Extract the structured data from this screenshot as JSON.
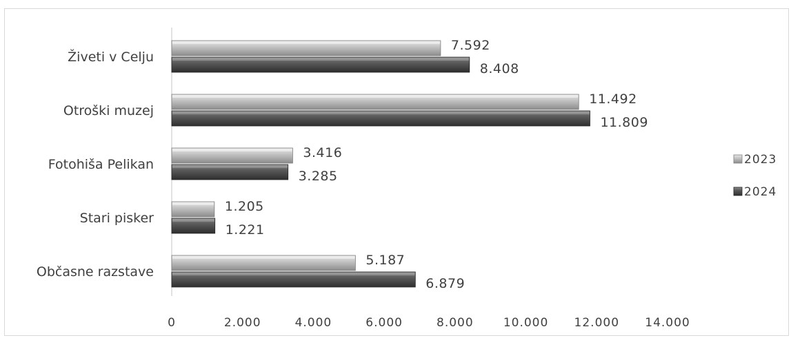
{
  "chart_data": {
    "type": "bar",
    "orientation": "horizontal",
    "categories": [
      "Živeti v Celju",
      "Otroški muzej",
      "Fotohiša Pelikan",
      "Stari pisker",
      "Občasne razstave"
    ],
    "series": [
      {
        "name": "2023",
        "values": [
          7592,
          11492,
          3416,
          1205,
          5187
        ],
        "labels": [
          "7.592",
          "11.492",
          "3.416",
          "1.205",
          "5.187"
        ],
        "color": "#a6a6a6"
      },
      {
        "name": "2024",
        "values": [
          8408,
          11809,
          3285,
          1221,
          6879
        ],
        "labels": [
          "8.408",
          "11.809",
          "3.285",
          "1.221",
          "6.879"
        ],
        "color": "#595959"
      }
    ],
    "xlim": [
      0,
      14000
    ],
    "xticks": [
      0,
      2000,
      4000,
      6000,
      8000,
      10000,
      12000,
      14000
    ],
    "xtick_labels": [
      "0",
      "2.000",
      "4.000",
      "6.000",
      "8.000",
      "10.000",
      "12.000",
      "14.000"
    ],
    "grid": false,
    "legend_position": "right"
  }
}
